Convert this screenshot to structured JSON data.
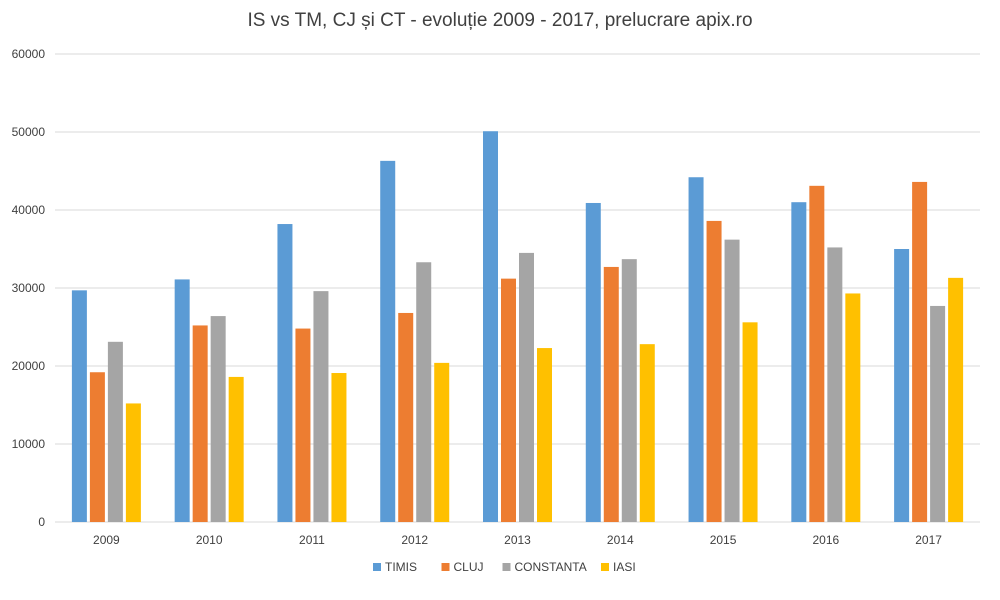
{
  "chart_data": {
    "type": "bar",
    "title": "IS vs TM, CJ și CT - evoluție 2009 - 2017, prelucrare apix.ro",
    "xlabel": "",
    "ylabel": "",
    "categories": [
      "2009",
      "2010",
      "2011",
      "2012",
      "2013",
      "2014",
      "2015",
      "2016",
      "2017"
    ],
    "ylim": [
      0,
      60000
    ],
    "yticks": [
      "0",
      "10000",
      "20000",
      "30000",
      "40000",
      "50000",
      "60000"
    ],
    "grid": true,
    "legend_position": "bottom",
    "series": [
      {
        "name": "TIMIS",
        "color": "#5B9BD5",
        "values": [
          29700,
          31100,
          38200,
          46300,
          50100,
          40900,
          44200,
          41000,
          35000
        ]
      },
      {
        "name": "CLUJ",
        "color": "#ED7D31",
        "values": [
          19200,
          25200,
          24800,
          26800,
          31200,
          32700,
          38600,
          43100,
          43600
        ]
      },
      {
        "name": "CONSTANTA",
        "color": "#A5A5A5",
        "values": [
          23100,
          26400,
          29600,
          33300,
          34500,
          33700,
          36200,
          35200,
          27700
        ]
      },
      {
        "name": "IASI",
        "color": "#FFC000",
        "values": [
          15200,
          18600,
          19100,
          20400,
          22300,
          22800,
          25600,
          29300,
          31300
        ]
      }
    ]
  }
}
